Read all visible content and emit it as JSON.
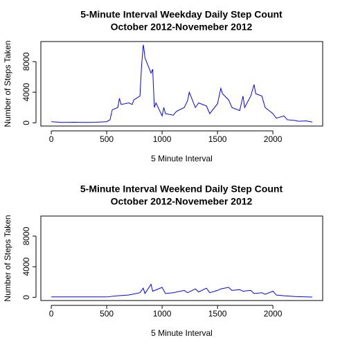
{
  "chart_data": [
    {
      "type": "line",
      "title": "5-Minute Interval Weekday Daily Step Count",
      "subtitle": "October 2012-Novemeber 2012",
      "x_label": "5 Minute Interval",
      "y_label": "Number of Steps Taken",
      "xlim": [
        -94.2,
        2449.2
      ],
      "ylim": [
        -420,
        10620
      ],
      "xticks": [
        0,
        500,
        1000,
        1500,
        2000
      ],
      "yticks": [
        0,
        4000,
        8000
      ],
      "x": [
        0,
        100,
        200,
        300,
        400,
        500,
        530,
        550,
        600,
        615,
        630,
        700,
        730,
        745,
        800,
        815,
        830,
        835,
        845,
        900,
        915,
        930,
        945,
        1000,
        1015,
        1030,
        1100,
        1130,
        1200,
        1230,
        1245,
        1300,
        1330,
        1400,
        1430,
        1500,
        1530,
        1545,
        1600,
        1630,
        1700,
        1730,
        1745,
        1800,
        1830,
        1845,
        1900,
        1930,
        2000,
        2030,
        2100,
        2130,
        2200,
        2230,
        2300,
        2355
      ],
      "series": [
        {
          "name": "Weekday",
          "color": "#0000ff",
          "values": [
            150,
            50,
            80,
            50,
            80,
            150,
            400,
            1700,
            2000,
            3200,
            2400,
            2600,
            2400,
            3000,
            3500,
            7500,
            10200,
            9800,
            8500,
            6500,
            7000,
            2000,
            2600,
            900,
            2000,
            1200,
            1000,
            1500,
            2000,
            2900,
            4000,
            2000,
            2600,
            2200,
            1200,
            2500,
            4500,
            3800,
            3000,
            2000,
            1600,
            3500,
            2000,
            3500,
            5000,
            3800,
            3500,
            2000,
            1200,
            600,
            900,
            400,
            300,
            200,
            250,
            100
          ]
        }
      ]
    },
    {
      "type": "line",
      "title": "5-Minute Interval Weekend Daily Step Count",
      "subtitle": "October 2012-Novemeber 2012",
      "x_label": "5 Minute Interval",
      "y_label": "Number of Steps Taken",
      "xlim": [
        -94.2,
        2449.2
      ],
      "ylim": [
        -420,
        10620
      ],
      "xticks": [
        0,
        500,
        1000,
        1500,
        2000
      ],
      "yticks": [
        0,
        4000,
        8000
      ],
      "x": [
        0,
        500,
        600,
        700,
        800,
        830,
        845,
        900,
        915,
        1000,
        1030,
        1100,
        1200,
        1230,
        1300,
        1330,
        1400,
        1430,
        1500,
        1530,
        1600,
        1630,
        1700,
        1730,
        1800,
        1830,
        1900,
        1930,
        2000,
        2030,
        2100,
        2200,
        2355
      ],
      "series": [
        {
          "name": "Weekend",
          "color": "#0000ff",
          "values": [
            50,
            50,
            200,
            300,
            600,
            1200,
            500,
            1700,
            800,
            1300,
            500,
            600,
            900,
            600,
            1100,
            700,
            1200,
            600,
            900,
            1100,
            1300,
            900,
            1000,
            800,
            900,
            500,
            600,
            400,
            800,
            300,
            200,
            100,
            30
          ]
        }
      ]
    }
  ]
}
